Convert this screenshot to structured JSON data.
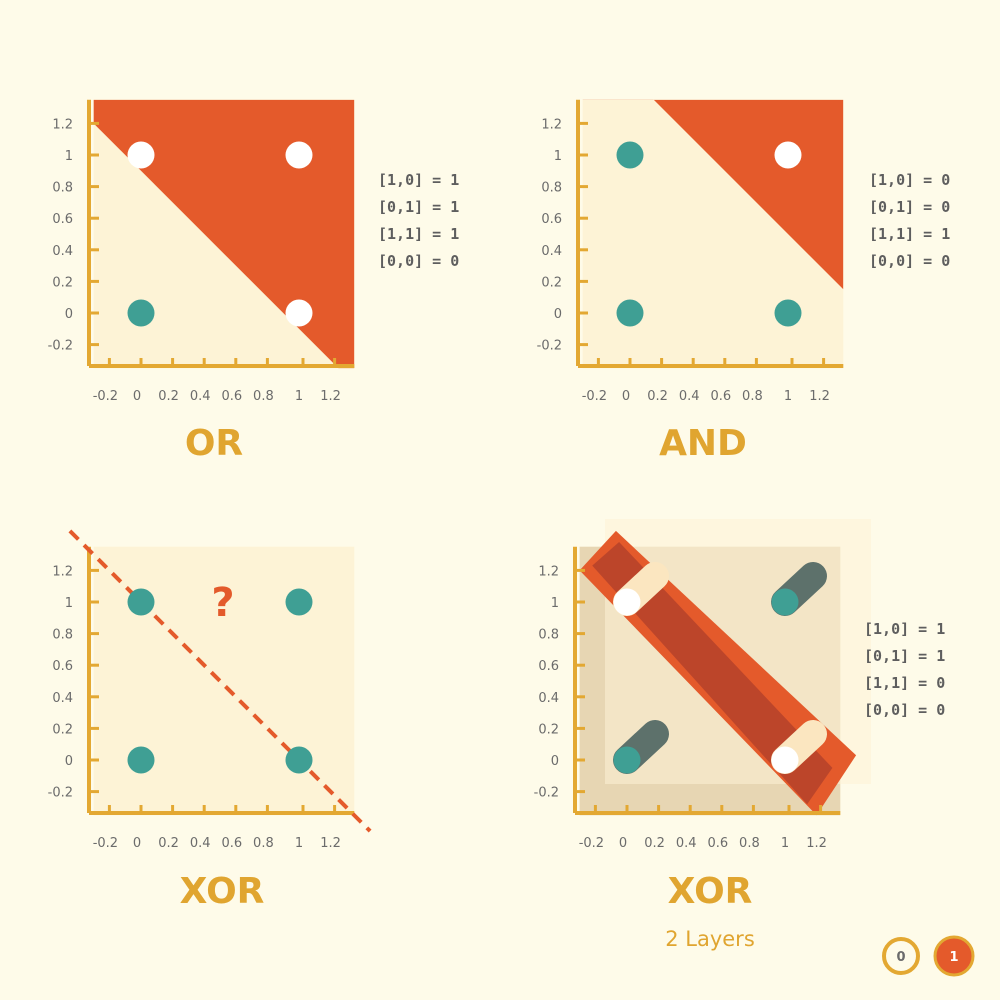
{
  "colors": {
    "background": "#fefbe9",
    "plot_bg": "#fdf3d6",
    "axis": "#e3a832",
    "region": "#e45a2b",
    "region_dark": "#b8432a",
    "point_zero": "#3f9f94",
    "point_one": "#ffffff",
    "shadow_dark": "#5d716b",
    "shadow_light": "#fbe6c0",
    "text": "#5e5e5e",
    "title": "#e0a530"
  },
  "chart_data": [
    {
      "type": "scatter",
      "title": "OR",
      "x_ticks": [
        "-0.2",
        "0",
        "0.2",
        "0.4",
        "0.6",
        "0.8",
        "1",
        "1.2"
      ],
      "y_ticks": [
        "1.2",
        "1",
        "0.8",
        "0.6",
        "0.4",
        "0.2",
        "0",
        "-0.2"
      ],
      "xlim": [
        -0.3,
        1.35
      ],
      "ylim": [
        -0.35,
        1.35
      ],
      "points": [
        {
          "x": 0,
          "y": 1,
          "label": 1
        },
        {
          "x": 1,
          "y": 1,
          "label": 1
        },
        {
          "x": 0,
          "y": 0,
          "label": 0
        },
        {
          "x": 1,
          "y": 0,
          "label": 1
        }
      ],
      "boundary": {
        "type": "line",
        "slope": -1,
        "intercept": 0.9
      },
      "truth_table": [
        "[1,0] = 1",
        "[0,1] = 1",
        "[1,1] = 1",
        "[0,0] = 0"
      ]
    },
    {
      "type": "scatter",
      "title": "AND",
      "x_ticks": [
        "-0.2",
        "0",
        "0.2",
        "0.4",
        "0.6",
        "0.8",
        "1",
        "1.2"
      ],
      "y_ticks": [
        "1.2",
        "1",
        "0.8",
        "0.6",
        "0.4",
        "0.2",
        "0",
        "-0.2"
      ],
      "xlim": [
        -0.3,
        1.35
      ],
      "ylim": [
        -0.35,
        1.35
      ],
      "points": [
        {
          "x": 0,
          "y": 1,
          "label": 0
        },
        {
          "x": 1,
          "y": 1,
          "label": 1
        },
        {
          "x": 0,
          "y": 0,
          "label": 0
        },
        {
          "x": 1,
          "y": 0,
          "label": 0
        }
      ],
      "boundary": {
        "type": "line",
        "slope": -1,
        "intercept": 1.5
      },
      "truth_table": [
        "[1,0] = 0",
        "[0,1] = 0",
        "[1,1] = 1",
        "[0,0] = 0"
      ]
    },
    {
      "type": "scatter",
      "title": "XOR",
      "annotation": "?",
      "x_ticks": [
        "-0.2",
        "0",
        "0.2",
        "0.4",
        "0.6",
        "0.8",
        "1",
        "1.2"
      ],
      "y_ticks": [
        "1.2",
        "1",
        "0.8",
        "0.6",
        "0.4",
        "0.2",
        "0",
        "-0.2"
      ],
      "xlim": [
        -0.3,
        1.35
      ],
      "ylim": [
        -0.35,
        1.35
      ],
      "points": [
        {
          "x": 0,
          "y": 1,
          "label": 0
        },
        {
          "x": 1,
          "y": 1,
          "label": 0
        },
        {
          "x": 0,
          "y": 0,
          "label": 0
        },
        {
          "x": 1,
          "y": 0,
          "label": 0
        }
      ],
      "boundary": {
        "type": "dashed-line",
        "slope": -1,
        "intercept": 1
      }
    },
    {
      "type": "scatter",
      "title": "XOR",
      "subtitle": "2 Layers",
      "x_ticks": [
        "-0.2",
        "0",
        "0.2",
        "0.4",
        "0.6",
        "0.8",
        "1",
        "1.2"
      ],
      "y_ticks": [
        "1.2",
        "1",
        "0.8",
        "0.6",
        "0.4",
        "0.2",
        "0",
        "-0.2"
      ],
      "xlim": [
        -0.3,
        1.35
      ],
      "ylim": [
        -0.35,
        1.35
      ],
      "points": [
        {
          "x": 0,
          "y": 1,
          "label": 1
        },
        {
          "x": 1,
          "y": 1,
          "label": 0
        },
        {
          "x": 0,
          "y": 0,
          "label": 0
        },
        {
          "x": 1,
          "y": 0,
          "label": 1
        }
      ],
      "boundary": {
        "type": "band",
        "slope": -1,
        "intercept_low": 0.7,
        "intercept_high": 1.3
      },
      "truth_table": [
        "[1,0] = 1",
        "[0,1] = 1",
        "[1,1] = 0",
        "[0,0] = 0"
      ]
    }
  ],
  "legend": [
    {
      "label": "0",
      "color": "#e3a832",
      "style": "outline"
    },
    {
      "label": "1",
      "color": "#e45a2b",
      "style": "filled"
    }
  ]
}
